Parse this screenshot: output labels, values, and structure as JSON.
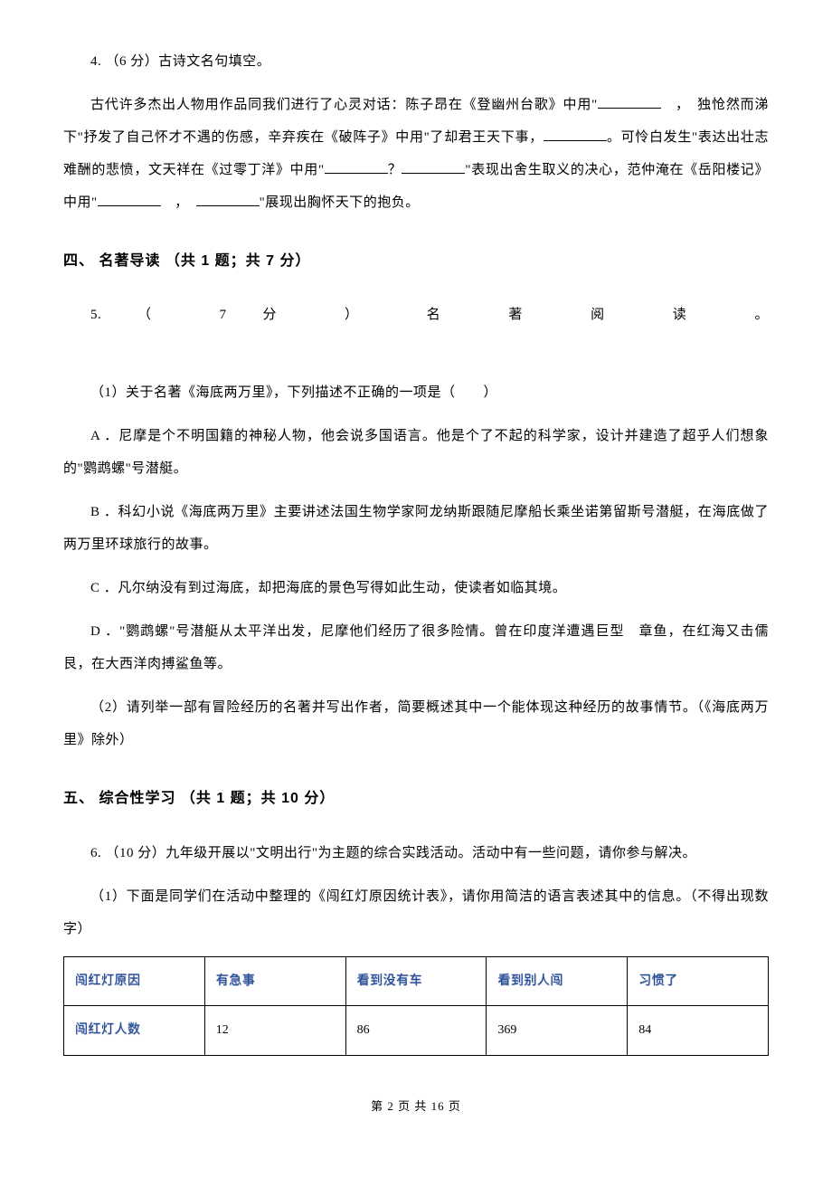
{
  "q4": {
    "label": "4. （6 分）古诗文名句填空。",
    "body_pre": "古代许多杰出人物用作品同我们进行了心灵对话：陈子昂在《登幽州台歌》中用\"",
    "body_mid1": "　，　独怆然而涕下\"抒发了自己怀才不遇的伤感，辛弃疾在《破阵子》中用\"了却君王天下事，",
    "body_mid2": "。可怜白发生\"表达出壮志难酬的悲愤，文天祥在《过零丁洋》中用\"",
    "body_mid3": "？",
    "body_mid4": "\"表现出舍生取义的决心，范仲淹在《岳阳楼记》中用\"",
    "body_mid5": "　，　",
    "body_end": "\"展现出胸怀天下的抱负。"
  },
  "section4": {
    "title": "四、 名著导读 （共 1 题；共 7 分）"
  },
  "q5": {
    "label": "5. （ 7 分 ） 名 著 阅 读 。",
    "sub1": "（1）关于名著《海底两万里》，下列描述不正确的一项是（　　）",
    "optA": "A ．尼摩是个不明国籍的神秘人物，他会说多国语言。他是个了不起的科学家，设计并建造了超乎人们想象的\"鹦鹉螺\"号潜艇。",
    "optB": "B ．科幻小说《海底两万里》主要讲述法国生物学家阿龙纳斯跟随尼摩船长乘坐诺第留斯号潜艇，在海底做了两万里环球旅行的故事。",
    "optC": "C ．凡尔纳没有到过海底，却把海底的景色写得如此生动，使读者如临其境。",
    "optD": "D ．\"鹦鹉螺\"号潜艇从太平洋出发，尼摩他们经历了很多险情。曾在印度洋遭遇巨型　章鱼，在红海又击儒艮，在大西洋肉搏鲨鱼等。",
    "sub2": "（2）请列举一部有冒险经历的名著并写出作者，简要概述其中一个能体现这种经历的故事情节。（《海底两万里》除外）"
  },
  "section5": {
    "title": "五、 综合性学习 （共 1 题；共 10 分）"
  },
  "q6": {
    "label": "6. （10 分）九年级开展以\"文明出行\"为主题的综合实践活动。活动中有一些问题，请你参与解决。",
    "sub1": "（1）下面是同学们在活动中整理的《闯红灯原因统计表》，请你用简洁的语言表述其中的信息。（不得出现数字）"
  },
  "table": {
    "columns": [
      "闯红灯原因",
      "有急事",
      "看到没有车",
      "看到别人闯",
      "习惯了"
    ],
    "rows": [
      [
        "闯红灯人数",
        "12",
        "86",
        "369",
        "84"
      ]
    ],
    "header_color": "#1a4f8f",
    "border_color": "#000000",
    "cell_fontsize": 14
  },
  "footer": "第 2 页 共 16 页"
}
